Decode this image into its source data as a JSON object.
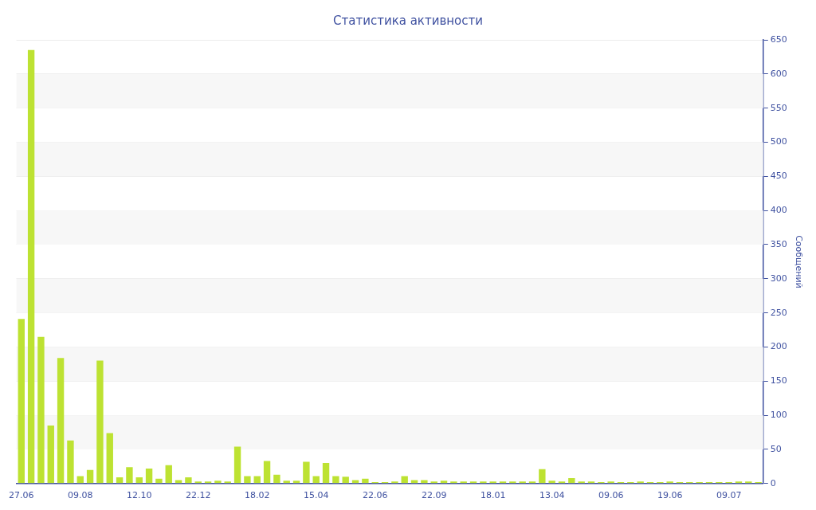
{
  "chart_data": {
    "type": "bar",
    "title": "Статистика активности",
    "ylabel": "Сообщений",
    "categories": [
      "27.06",
      null,
      null,
      null,
      null,
      null,
      "09.08",
      null,
      null,
      null,
      null,
      null,
      "12.10",
      null,
      null,
      null,
      null,
      null,
      "22.12",
      null,
      null,
      null,
      null,
      null,
      "18.02",
      null,
      null,
      null,
      null,
      null,
      "15.04",
      null,
      null,
      null,
      null,
      null,
      "22.06",
      null,
      null,
      null,
      null,
      null,
      "22.09",
      null,
      null,
      null,
      null,
      null,
      "18.01",
      null,
      null,
      null,
      null,
      null,
      "13.04",
      null,
      null,
      null,
      null,
      null,
      "09.06",
      null,
      null,
      null,
      null,
      null,
      "19.06",
      null,
      null,
      null,
      null,
      null,
      "09.07",
      null,
      null,
      null
    ],
    "values": [
      241,
      635,
      215,
      85,
      184,
      63,
      11,
      20,
      180,
      74,
      9,
      24,
      9,
      22,
      7,
      27,
      5,
      9,
      3,
      3,
      4,
      3,
      54,
      11,
      11,
      33,
      13,
      4,
      4,
      32,
      11,
      30,
      11,
      10,
      5,
      7,
      2,
      2,
      3,
      11,
      5,
      5,
      3,
      4,
      3,
      3,
      3,
      3,
      3,
      3,
      3,
      3,
      3,
      21,
      4,
      3,
      8,
      3,
      3,
      2,
      3,
      2,
      2,
      3,
      2,
      2,
      3,
      2,
      2,
      2,
      2,
      2,
      2,
      3,
      3,
      2
    ],
    "color": "#bde232",
    "ylim": [
      0,
      650
    ],
    "yticks": [
      0,
      50,
      100,
      150,
      200,
      250,
      300,
      350,
      400,
      450,
      500,
      550,
      600,
      650
    ],
    "grid": "y",
    "legend": false
  }
}
